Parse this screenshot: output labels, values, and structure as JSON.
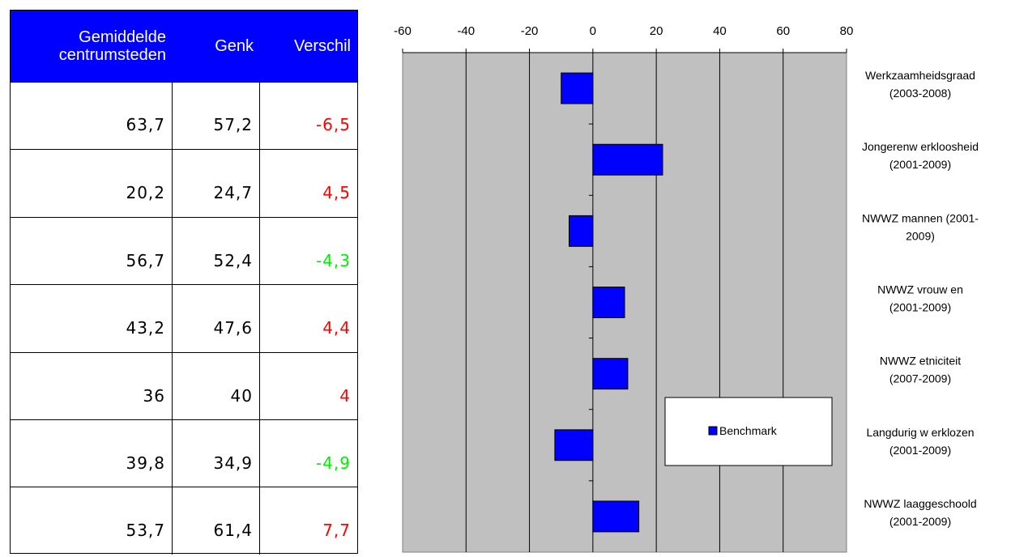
{
  "table": {
    "headers": [
      "Gemiddelde centrumsteden",
      "Genk",
      "Verschil"
    ],
    "rows": [
      {
        "gem": "63,7",
        "genk": "57,2",
        "verschil": "-6,5"
      },
      {
        "gem": "20,2",
        "genk": "24,7",
        "verschil": "4,5"
      },
      {
        "gem": "56,7",
        "genk": "52,4",
        "verschil": "-4,3"
      },
      {
        "gem": "43,2",
        "genk": "47,6",
        "verschil": "4,4"
      },
      {
        "gem": "36",
        "genk": "40",
        "verschil": "4"
      },
      {
        "gem": "39,8",
        "genk": "34,9",
        "verschil": "-4,9"
      },
      {
        "gem": "53,7",
        "genk": "61,4",
        "verschil": "7,7"
      }
    ],
    "colors": [
      "#ff0000",
      "#ff0000",
      "#00ee00",
      "#ff0000",
      "#ff0000",
      "#00ee00",
      "#ff0000"
    ]
  },
  "chart_data": {
    "type": "bar",
    "orientation": "horizontal",
    "categories": [
      [
        "Werkzaamheidsgraad",
        "(2003-2008)"
      ],
      [
        "Jongerenw erkloosheid",
        "(2001-2009)"
      ],
      [
        "NWWZ mannen (2001-",
        "2009)"
      ],
      [
        "NWWZ vrouw en",
        "(2001-2009)"
      ],
      [
        "NWWZ etniciteit",
        "(2007-2009)"
      ],
      [
        "Langdurig w erklozen",
        "(2001-2009)"
      ],
      [
        "NWWZ laaggeschoold",
        "(2001-2009)"
      ]
    ],
    "series": [
      {
        "name": "Benchmark",
        "values": [
          -10,
          22,
          -7.5,
          10,
          11,
          -12,
          14.5
        ],
        "color": "#0000ff"
      }
    ],
    "xlim": [
      -60,
      80
    ],
    "xticks": [
      "-60",
      "-40",
      "-20",
      "0",
      "20",
      "40",
      "60",
      "80"
    ],
    "xtick_values": [
      -60,
      -40,
      -20,
      0,
      20,
      40,
      60,
      80
    ],
    "grid": true,
    "plot_background": "#c0c0c0",
    "legend_position": "right"
  }
}
